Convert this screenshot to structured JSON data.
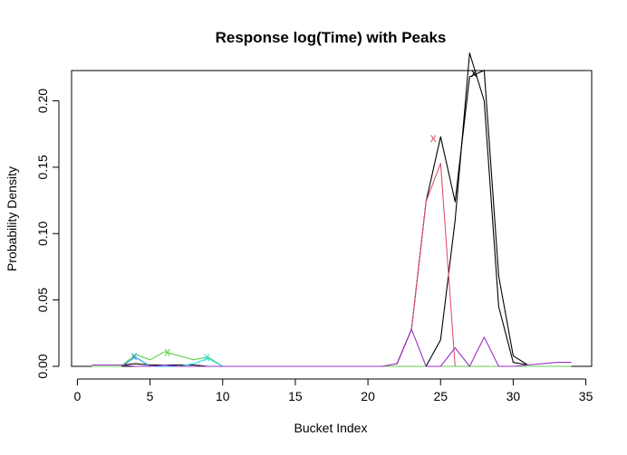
{
  "chart_data": {
    "type": "line",
    "title": "Response log(Time) with Peaks",
    "xlabel": "Bucket Index",
    "ylabel": "Probability Density",
    "xlim": [
      -0.4,
      35.4
    ],
    "ylim": [
      0,
      0.2228
    ],
    "xticks": [
      0,
      5,
      10,
      15,
      20,
      25,
      30,
      35
    ],
    "yticks": [
      0.0,
      0.05,
      0.1,
      0.15,
      0.2
    ],
    "ytick_labels": [
      "0.00",
      "0.05",
      "0.10",
      "0.15",
      "0.20"
    ],
    "grid": false,
    "legend": "none",
    "series": [
      {
        "color": "#000000",
        "x": [
          1,
          2,
          3,
          4,
          5,
          6,
          7,
          8,
          9,
          10,
          11,
          12,
          13,
          14,
          15,
          16,
          17,
          18,
          19,
          20,
          21,
          22,
          23,
          24,
          25,
          26,
          27,
          28,
          29,
          30,
          31
        ],
        "y": [
          0.001,
          0.001,
          0.001,
          0.002,
          0.001,
          0.001,
          0.001,
          0.001,
          0.0,
          0.0,
          0.0,
          0.0,
          0.0,
          0.0,
          0.0,
          0.0,
          0.0,
          0.0,
          0.0,
          0.0,
          0.0,
          0.0,
          0.0,
          0.0,
          0.02,
          0.11,
          0.236,
          0.2,
          0.045,
          0.003,
          0.001
        ]
      },
      {
        "color": "#000000",
        "x": [
          22,
          23,
          24,
          25,
          26,
          27,
          28,
          29,
          30,
          31
        ],
        "y": [
          0.002,
          0.028,
          0.124,
          0.173,
          0.124,
          0.218,
          0.223,
          0.068,
          0.008,
          0.001
        ]
      },
      {
        "color": "#DF536B",
        "x": [
          20,
          21,
          22,
          23,
          24,
          25,
          26,
          27,
          28
        ],
        "y": [
          0.0,
          0.0,
          0.002,
          0.028,
          0.124,
          0.153,
          0.0,
          0.0,
          0.0
        ]
      },
      {
        "color": "#2297E6",
        "x": [
          1,
          2,
          3,
          4,
          5,
          6,
          7,
          8,
          9,
          10,
          11
        ],
        "y": [
          0.0,
          0.0,
          0.0,
          0.007,
          0.0,
          0.0,
          0.0,
          0.0,
          0.0,
          0.0,
          0.0
        ]
      },
      {
        "color": "#61D04F",
        "x": [
          1,
          2,
          3,
          4,
          5,
          6,
          7,
          8,
          9,
          10,
          11,
          12,
          13,
          14,
          15,
          16,
          17,
          18,
          19,
          20,
          21,
          22,
          23,
          24,
          25,
          26,
          27,
          28,
          29,
          30,
          31,
          32,
          33,
          34
        ],
        "y": [
          0.0,
          0.0,
          0.0,
          0.009,
          0.005,
          0.011,
          0.008,
          0.005,
          0.007,
          0.0,
          0.0,
          0.0,
          0.0,
          0.0,
          0.0,
          0.0,
          0.0,
          0.0,
          0.0,
          0.0,
          0.0,
          0.0,
          0.0,
          0.0,
          0.0,
          0.0,
          0.0,
          0.0,
          0.0,
          0.0,
          0.0,
          0.0,
          0.0,
          0.0
        ]
      },
      {
        "color": "#28E2E5",
        "x": [
          7,
          8,
          9,
          10,
          11
        ],
        "y": [
          0.0,
          0.002,
          0.006,
          0.0,
          0.0
        ]
      },
      {
        "color": "#9E2FC8",
        "x": [
          1,
          2,
          3,
          4,
          5,
          6,
          7,
          8,
          9,
          10,
          11,
          12,
          13,
          14,
          15,
          16,
          17,
          18,
          19,
          20,
          21,
          22,
          23,
          24,
          25,
          26,
          27,
          28,
          29,
          30,
          31,
          32,
          33,
          34
        ],
        "y": [
          0.001,
          0.001,
          0.001,
          0.0,
          0.0,
          0.001,
          0.0,
          0.0,
          0.0,
          0.0,
          0.0,
          0.0,
          0.0,
          0.0,
          0.0,
          0.0,
          0.0,
          0.0,
          0.0,
          0.0,
          0.0,
          0.002,
          0.028,
          0.0,
          0.0,
          0.014,
          0.0,
          0.022,
          0.0,
          0.0,
          0.001,
          0.002,
          0.003,
          0.003
        ]
      }
    ],
    "peak_markers": [
      {
        "symbol": "x",
        "x": 24.5,
        "y": 0.172,
        "color": "#DF536B"
      },
      {
        "symbol": "x",
        "x": 27.3,
        "y": 0.221,
        "color": "#000000"
      },
      {
        "symbol": "x",
        "x": 3.9,
        "y": 0.008,
        "color": "#2297E6"
      },
      {
        "symbol": "x",
        "x": 6.2,
        "y": 0.011,
        "color": "#61D04F"
      },
      {
        "symbol": "x",
        "x": 8.9,
        "y": 0.007,
        "color": "#28E2E5"
      }
    ]
  }
}
